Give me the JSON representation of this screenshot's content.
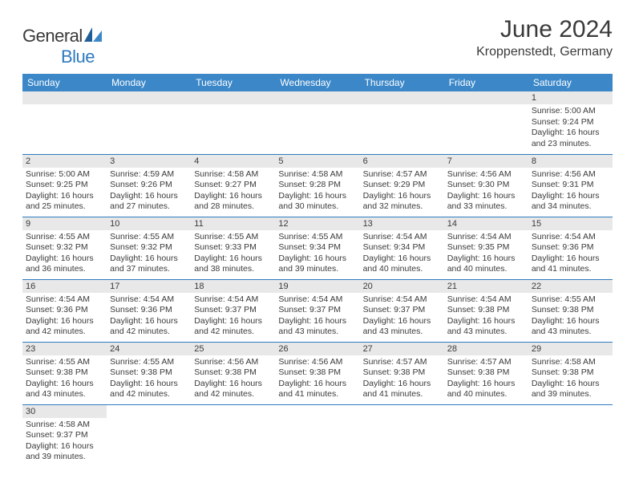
{
  "brand": {
    "name_a": "General",
    "name_b": "Blue"
  },
  "title": "June 2024",
  "location": "Kroppenstedt, Germany",
  "colors": {
    "header_bg": "#3b87c8",
    "header_fg": "#ffffff",
    "rule": "#2f7bbf",
    "daynum_bg": "#e8e8e8",
    "text": "#3a3a3a",
    "page_bg": "#ffffff"
  },
  "fonts": {
    "base_family": "Arial",
    "title_size_pt": 22,
    "location_size_pt": 12,
    "header_size_pt": 9,
    "body_size_pt": 8
  },
  "weekdays": [
    "Sunday",
    "Monday",
    "Tuesday",
    "Wednesday",
    "Thursday",
    "Friday",
    "Saturday"
  ],
  "lead_blanks": 6,
  "days": [
    {
      "n": 1,
      "sunrise": "5:00 AM",
      "sunset": "9:24 PM",
      "dl_h": 16,
      "dl_m": 23
    },
    {
      "n": 2,
      "sunrise": "5:00 AM",
      "sunset": "9:25 PM",
      "dl_h": 16,
      "dl_m": 25
    },
    {
      "n": 3,
      "sunrise": "4:59 AM",
      "sunset": "9:26 PM",
      "dl_h": 16,
      "dl_m": 27
    },
    {
      "n": 4,
      "sunrise": "4:58 AM",
      "sunset": "9:27 PM",
      "dl_h": 16,
      "dl_m": 28
    },
    {
      "n": 5,
      "sunrise": "4:58 AM",
      "sunset": "9:28 PM",
      "dl_h": 16,
      "dl_m": 30
    },
    {
      "n": 6,
      "sunrise": "4:57 AM",
      "sunset": "9:29 PM",
      "dl_h": 16,
      "dl_m": 32
    },
    {
      "n": 7,
      "sunrise": "4:56 AM",
      "sunset": "9:30 PM",
      "dl_h": 16,
      "dl_m": 33
    },
    {
      "n": 8,
      "sunrise": "4:56 AM",
      "sunset": "9:31 PM",
      "dl_h": 16,
      "dl_m": 34
    },
    {
      "n": 9,
      "sunrise": "4:55 AM",
      "sunset": "9:32 PM",
      "dl_h": 16,
      "dl_m": 36
    },
    {
      "n": 10,
      "sunrise": "4:55 AM",
      "sunset": "9:32 PM",
      "dl_h": 16,
      "dl_m": 37
    },
    {
      "n": 11,
      "sunrise": "4:55 AM",
      "sunset": "9:33 PM",
      "dl_h": 16,
      "dl_m": 38
    },
    {
      "n": 12,
      "sunrise": "4:55 AM",
      "sunset": "9:34 PM",
      "dl_h": 16,
      "dl_m": 39
    },
    {
      "n": 13,
      "sunrise": "4:54 AM",
      "sunset": "9:34 PM",
      "dl_h": 16,
      "dl_m": 40
    },
    {
      "n": 14,
      "sunrise": "4:54 AM",
      "sunset": "9:35 PM",
      "dl_h": 16,
      "dl_m": 40
    },
    {
      "n": 15,
      "sunrise": "4:54 AM",
      "sunset": "9:36 PM",
      "dl_h": 16,
      "dl_m": 41
    },
    {
      "n": 16,
      "sunrise": "4:54 AM",
      "sunset": "9:36 PM",
      "dl_h": 16,
      "dl_m": 42
    },
    {
      "n": 17,
      "sunrise": "4:54 AM",
      "sunset": "9:36 PM",
      "dl_h": 16,
      "dl_m": 42
    },
    {
      "n": 18,
      "sunrise": "4:54 AM",
      "sunset": "9:37 PM",
      "dl_h": 16,
      "dl_m": 42
    },
    {
      "n": 19,
      "sunrise": "4:54 AM",
      "sunset": "9:37 PM",
      "dl_h": 16,
      "dl_m": 43
    },
    {
      "n": 20,
      "sunrise": "4:54 AM",
      "sunset": "9:37 PM",
      "dl_h": 16,
      "dl_m": 43
    },
    {
      "n": 21,
      "sunrise": "4:54 AM",
      "sunset": "9:38 PM",
      "dl_h": 16,
      "dl_m": 43
    },
    {
      "n": 22,
      "sunrise": "4:55 AM",
      "sunset": "9:38 PM",
      "dl_h": 16,
      "dl_m": 43
    },
    {
      "n": 23,
      "sunrise": "4:55 AM",
      "sunset": "9:38 PM",
      "dl_h": 16,
      "dl_m": 43
    },
    {
      "n": 24,
      "sunrise": "4:55 AM",
      "sunset": "9:38 PM",
      "dl_h": 16,
      "dl_m": 42
    },
    {
      "n": 25,
      "sunrise": "4:56 AM",
      "sunset": "9:38 PM",
      "dl_h": 16,
      "dl_m": 42
    },
    {
      "n": 26,
      "sunrise": "4:56 AM",
      "sunset": "9:38 PM",
      "dl_h": 16,
      "dl_m": 41
    },
    {
      "n": 27,
      "sunrise": "4:57 AM",
      "sunset": "9:38 PM",
      "dl_h": 16,
      "dl_m": 41
    },
    {
      "n": 28,
      "sunrise": "4:57 AM",
      "sunset": "9:38 PM",
      "dl_h": 16,
      "dl_m": 40
    },
    {
      "n": 29,
      "sunrise": "4:58 AM",
      "sunset": "9:38 PM",
      "dl_h": 16,
      "dl_m": 39
    },
    {
      "n": 30,
      "sunrise": "4:58 AM",
      "sunset": "9:37 PM",
      "dl_h": 16,
      "dl_m": 39
    }
  ],
  "labels": {
    "sunrise": "Sunrise:",
    "sunset": "Sunset:",
    "daylight_prefix": "Daylight:",
    "hours_word": "hours",
    "and_word": "and",
    "minutes_word": "minutes."
  }
}
